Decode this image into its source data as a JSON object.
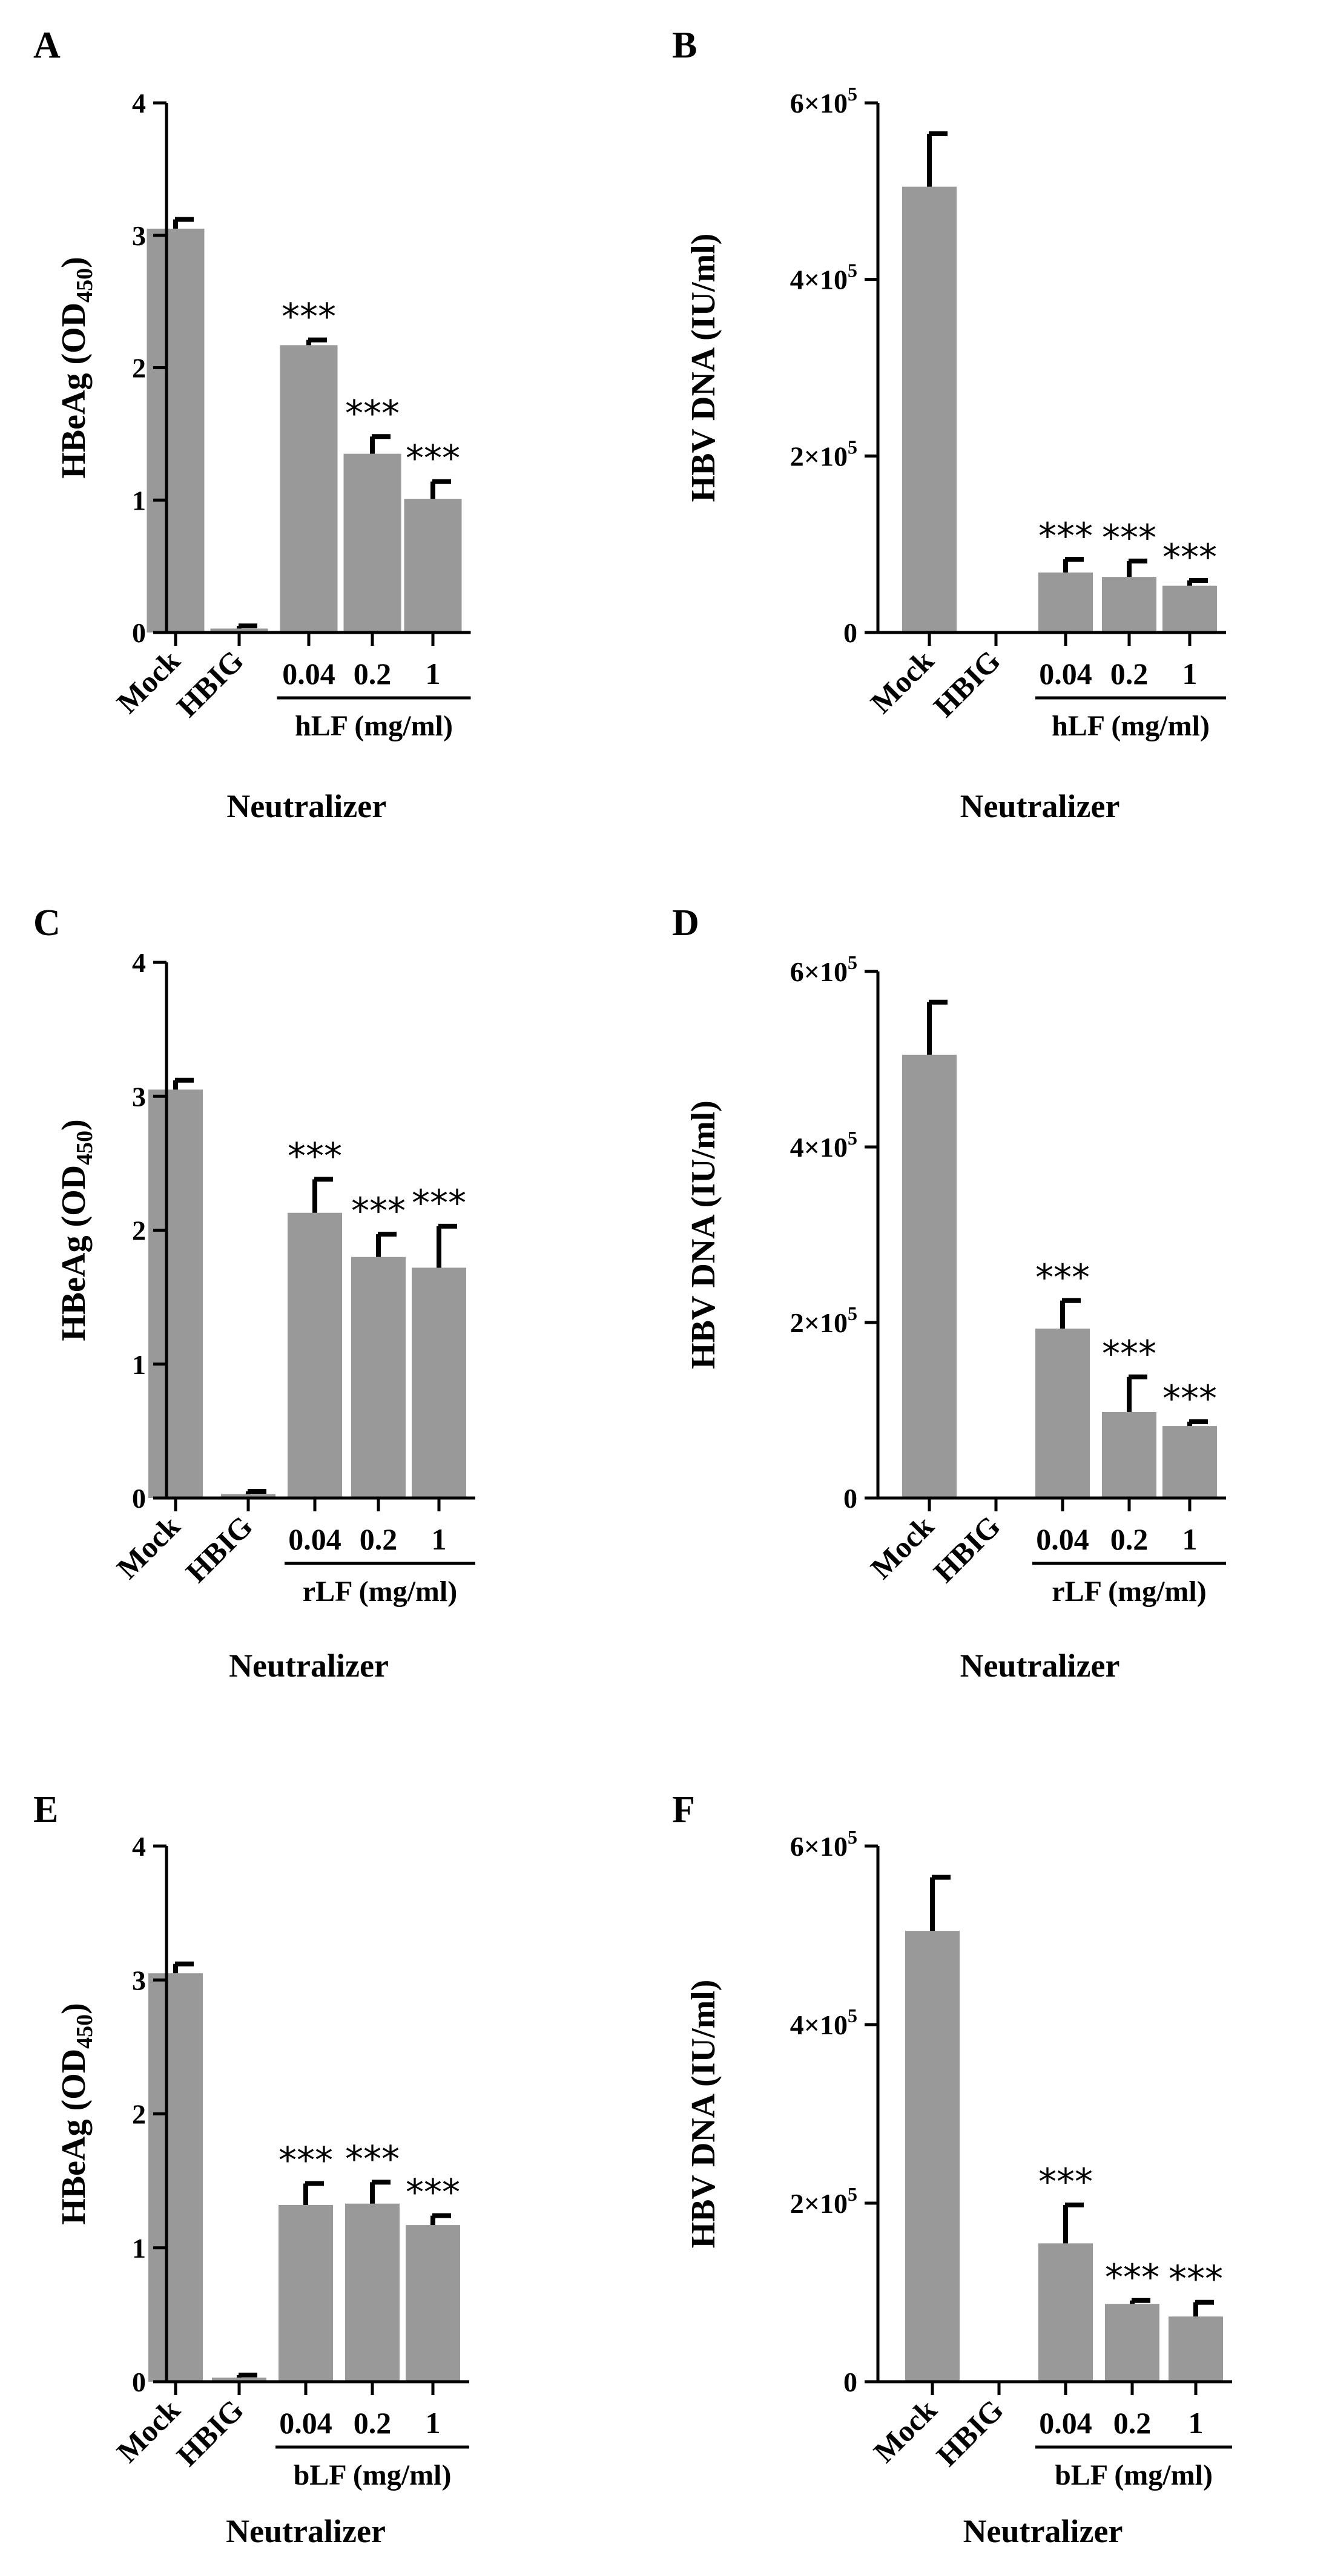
{
  "chart_data": [
    {
      "panel": "A",
      "type": "bar",
      "ylabel": "HBeAg (OD450)",
      "ylabel_main": "HBeAg (OD",
      "ylabel_sub": "450",
      "ylabel_end": ")",
      "xlabel": "Neutralizer",
      "group_label": "hLF (mg/ml)",
      "categories": [
        "Mock",
        "HBIG",
        "0.04",
        "0.2",
        "1"
      ],
      "values": [
        3.05,
        0.03,
        2.17,
        1.35,
        1.01
      ],
      "errors": [
        0.07,
        0.02,
        0.04,
        0.13,
        0.13
      ],
      "significance": [
        "",
        "",
        "***",
        "***",
        "***"
      ],
      "ylim": [
        0,
        4
      ],
      "yticks": [
        0,
        1,
        2,
        3,
        4
      ],
      "ytick_labels": [
        "0",
        "1",
        "2",
        "3",
        "4"
      ]
    },
    {
      "panel": "B",
      "type": "bar",
      "ylabel": "HBV DNA (IU/ml)",
      "xlabel": "Neutralizer",
      "group_label": "hLF (mg/ml)",
      "categories": [
        "Mock",
        "HBIG",
        "0.04",
        "0.2",
        "1"
      ],
      "values": [
        505000,
        0,
        68000,
        63000,
        53000
      ],
      "errors": [
        60000,
        0,
        15000,
        18000,
        6000
      ],
      "significance": [
        "",
        "",
        "***",
        "***",
        "***"
      ],
      "ylim": [
        0,
        600000
      ],
      "yticks": [
        0,
        200000,
        400000,
        600000
      ],
      "ytick_labels": [
        "0",
        "2×10^5",
        "4×10^5",
        "6×10^5"
      ]
    },
    {
      "panel": "C",
      "type": "bar",
      "ylabel": "HBeAg (OD450)",
      "ylabel_main": "HBeAg (OD",
      "ylabel_sub": "450",
      "ylabel_end": ")",
      "xlabel": "Neutralizer",
      "group_label": "rLF (mg/ml)",
      "categories": [
        "Mock",
        "HBIG",
        "0.04",
        "0.2",
        "1"
      ],
      "values": [
        3.05,
        0.03,
        2.13,
        1.8,
        1.72
      ],
      "errors": [
        0.07,
        0.02,
        0.25,
        0.17,
        0.31
      ],
      "significance": [
        "",
        "",
        "***",
        "***",
        "***"
      ],
      "ylim": [
        0,
        4
      ],
      "yticks": [
        0,
        1,
        2,
        3,
        4
      ],
      "ytick_labels": [
        "0",
        "1",
        "2",
        "3",
        "4"
      ]
    },
    {
      "panel": "D",
      "type": "bar",
      "ylabel": "HBV DNA (IU/ml)",
      "xlabel": "Neutralizer",
      "group_label": "rLF (mg/ml)",
      "categories": [
        "Mock",
        "HBIG",
        "0.04",
        "0.2",
        "1"
      ],
      "values": [
        505000,
        0,
        193000,
        98000,
        82000
      ],
      "errors": [
        60000,
        0,
        32000,
        40000,
        5000
      ],
      "significance": [
        "",
        "",
        "***",
        "***",
        "***"
      ],
      "ylim": [
        0,
        600000
      ],
      "yticks": [
        0,
        200000,
        400000,
        600000
      ],
      "ytick_labels": [
        "0",
        "2×10^5",
        "4×10^5",
        "6×10^5"
      ]
    },
    {
      "panel": "E",
      "type": "bar",
      "ylabel": "HBeAg (OD450)",
      "ylabel_main": "HBeAg (OD",
      "ylabel_sub": "450",
      "ylabel_end": ")",
      "xlabel": "Neutralizer",
      "group_label": "bLF (mg/ml)",
      "categories": [
        "Mock",
        "HBIG",
        "0.04",
        "0.2",
        "1"
      ],
      "values": [
        3.05,
        0.03,
        1.32,
        1.33,
        1.17
      ],
      "errors": [
        0.07,
        0.02,
        0.16,
        0.16,
        0.07
      ],
      "significance": [
        "",
        "",
        "***",
        "***",
        "***"
      ],
      "ylim": [
        0,
        4
      ],
      "yticks": [
        0,
        1,
        2,
        3,
        4
      ],
      "ytick_labels": [
        "0",
        "1",
        "2",
        "3",
        "4"
      ]
    },
    {
      "panel": "F",
      "type": "bar",
      "ylabel": "HBV DNA (IU/ml)",
      "xlabel": "Neutralizer",
      "group_label": "bLF (mg/ml)",
      "categories": [
        "Mock",
        "HBIG",
        "0.04",
        "0.2",
        "1"
      ],
      "values": [
        505000,
        0,
        155000,
        87000,
        73000
      ],
      "errors": [
        60000,
        0,
        43000,
        4000,
        16000
      ],
      "significance": [
        "",
        "",
        "***",
        "***",
        "***"
      ],
      "ylim": [
        0,
        600000
      ],
      "yticks": [
        0,
        200000,
        400000,
        600000
      ],
      "ytick_labels": [
        "0",
        "2×10^5",
        "4×10^5",
        "6×10^5"
      ]
    }
  ],
  "colors": {
    "bar": "#999999",
    "axis": "#000000",
    "text": "#000000"
  }
}
